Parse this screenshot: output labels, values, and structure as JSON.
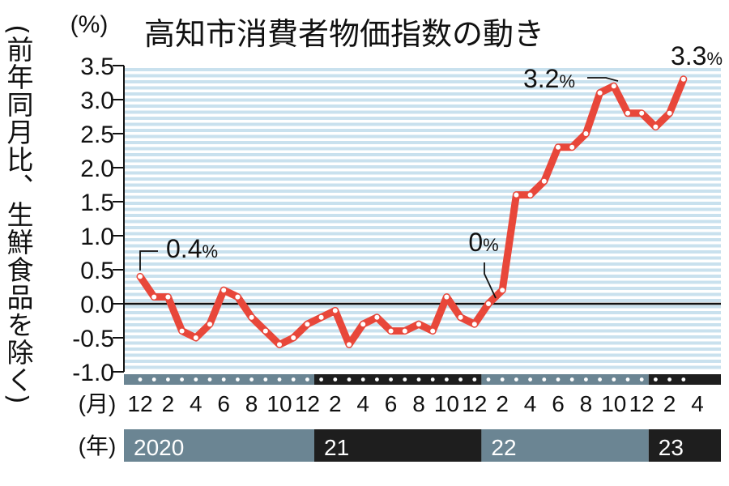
{
  "chart_data": {
    "type": "line",
    "title": "高知市消費者物価指数の動き",
    "unit_label": "(%)",
    "ylabel": "(前年同月比、生鮮食品を除く)",
    "ylim": [
      -1.0,
      3.5
    ],
    "yticks": [
      "3.5",
      "3.0",
      "2.5",
      "2.0",
      "1.5",
      "1.0",
      "0.5",
      "0.0",
      "-0.5",
      "-1.0"
    ],
    "ytick_values": [
      3.5,
      3.0,
      2.5,
      2.0,
      1.5,
      1.0,
      0.5,
      0.0,
      -0.5,
      -1.0
    ],
    "grid": "horizontal stripes",
    "month_axis_label": "(月)",
    "year_axis_label": "(年)",
    "month_ticks": [
      {
        "label": "12",
        "index": 0
      },
      {
        "label": "2",
        "index": 2
      },
      {
        "label": "4",
        "index": 4
      },
      {
        "label": "6",
        "index": 6
      },
      {
        "label": "8",
        "index": 8
      },
      {
        "label": "10",
        "index": 10
      },
      {
        "label": "12",
        "index": 12
      },
      {
        "label": "2",
        "index": 14
      },
      {
        "label": "4",
        "index": 16
      },
      {
        "label": "6",
        "index": 18
      },
      {
        "label": "8",
        "index": 20
      },
      {
        "label": "10",
        "index": 22
      },
      {
        "label": "12",
        "index": 24
      },
      {
        "label": "2",
        "index": 26
      },
      {
        "label": "4",
        "index": 28
      },
      {
        "label": "6",
        "index": 30
      },
      {
        "label": "8",
        "index": 32
      },
      {
        "label": "10",
        "index": 34
      },
      {
        "label": "12",
        "index": 36
      },
      {
        "label": "2",
        "index": 38
      },
      {
        "label": "4",
        "index": 40
      }
    ],
    "years": [
      {
        "label": "2020",
        "start": 0,
        "end": 13,
        "color": "#6b8593"
      },
      {
        "label": "21",
        "start": 13,
        "end": 25,
        "color": "#1e1e1e"
      },
      {
        "label": "22",
        "start": 25,
        "end": 37,
        "color": "#6b8593"
      },
      {
        "label": "23",
        "start": 37,
        "end": 41,
        "color": "#1e1e1e"
      }
    ],
    "values": [
      0.4,
      0.1,
      0.1,
      -0.4,
      -0.5,
      -0.3,
      0.2,
      0.1,
      -0.2,
      -0.4,
      -0.6,
      -0.5,
      -0.3,
      -0.2,
      -0.1,
      -0.6,
      -0.3,
      -0.2,
      -0.4,
      -0.4,
      -0.3,
      -0.4,
      0.1,
      -0.2,
      -0.3,
      0.0,
      0.2,
      1.6,
      1.6,
      1.8,
      2.3,
      2.3,
      2.5,
      3.1,
      3.2,
      2.8,
      2.8,
      2.6,
      2.8,
      3.3
    ],
    "annotations": [
      {
        "text": "0.4",
        "unit": "%",
        "index": 0
      },
      {
        "text": "0",
        "unit": "%",
        "index": 25
      },
      {
        "text": "3.2",
        "unit": "%",
        "index": 34
      },
      {
        "text": "3.3",
        "unit": "%",
        "index": 39
      }
    ],
    "colors": {
      "line": "#e8473a",
      "marker": "#ffffff",
      "stripe": "#c9e1ee",
      "zero_line": "#111111",
      "text": "#111111"
    }
  }
}
